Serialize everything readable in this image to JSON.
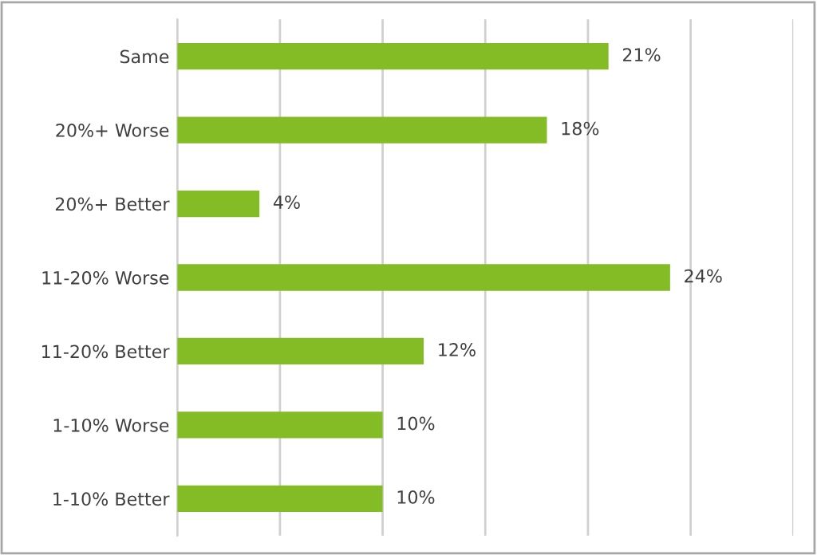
{
  "chart_data": {
    "type": "bar",
    "orientation": "horizontal",
    "categories": [
      "Same",
      "20%+ Worse",
      "20%+ Better",
      "11-20% Worse",
      "11-20% Better",
      "1-10% Worse",
      "1-10% Better"
    ],
    "values": [
      21,
      18,
      4,
      24,
      12,
      10,
      10
    ],
    "value_labels": [
      "21%",
      "18%",
      "4%",
      "24%",
      "12%",
      "10%",
      "10%"
    ],
    "color": "#84bc26",
    "xlim": [
      0,
      30
    ],
    "xticks": [
      {
        "value": 0,
        "label": null
      },
      {
        "value": 5,
        "label": null
      },
      {
        "value": 10,
        "label": null
      },
      {
        "value": 15,
        "label": null
      },
      {
        "value": 20,
        "label": null
      },
      {
        "value": 25,
        "label": null
      },
      {
        "value": 30,
        "label": null
      }
    ],
    "grid": "x",
    "legend": false
  }
}
